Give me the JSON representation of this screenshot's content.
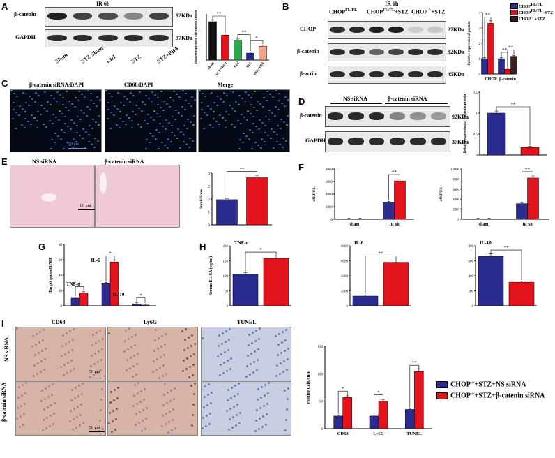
{
  "panels": {
    "A": {
      "letter": "A",
      "title": "IR 6h",
      "row1_label": "β-catenin",
      "row2_label": "GAPDH",
      "row1_kda": "92KDa",
      "row2_kda": "37KDa",
      "lanes": [
        "Sham",
        "STZ Sham",
        "Ctrl",
        "STZ",
        "STZ+PBA"
      ]
    },
    "B": {
      "letter": "B",
      "title": "IR 6h",
      "groups": [
        "CHOP",
        "CHOP",
        "CHOP"
      ],
      "group_sups": [
        "FL/FL",
        "FL/FL",
        "-/-"
      ],
      "group_suffix": [
        "",
        "+STZ",
        "+STZ"
      ],
      "rows": [
        "CHOP",
        "β-catenin",
        "β-actin"
      ],
      "kdas": [
        "27KDa",
        "92KDa",
        "45KDa"
      ],
      "legend": [
        {
          "base": "CHOP",
          "sup": "FL/FL",
          "suffix": ""
        },
        {
          "base": "CHOP",
          "sup": "FL/FL",
          "suffix": "+STZ"
        },
        {
          "base": "CHOP",
          "sup": "-/-",
          "suffix": "+STZ"
        }
      ]
    },
    "C": {
      "letter": "C",
      "labels": [
        "β-catenin siRNA/DAPI",
        "CD68/DAPI",
        "Merge"
      ],
      "scale": "50 μm"
    },
    "D": {
      "letter": "D",
      "groups": [
        "NS siRNA",
        "β-catenin siRNA"
      ],
      "rows": [
        "β-catenin",
        "GAPDH"
      ],
      "kdas": [
        "92KDa",
        "37KDa"
      ]
    },
    "E": {
      "letter": "E",
      "labels": [
        "NS siRNA",
        "β-catenin siRNA"
      ],
      "scale": "100 μm"
    },
    "F": {
      "letter": "F"
    },
    "G": {
      "letter": "G",
      "labels": [
        "TNF-α",
        "IL-6",
        "IL-10"
      ]
    },
    "H": {
      "letter": "H"
    },
    "I": {
      "letter": "I",
      "cols": [
        "CD68",
        "Ly6G",
        "TUNEL"
      ],
      "rows": [
        "NS siRNA",
        "β-catenin siRNA"
      ],
      "scale": "50 μm",
      "legend": [
        {
          "base": "CHOP",
          "sup": "-/-",
          "suffix": "+STZ+NS siRNA"
        },
        {
          "base": "CHOP",
          "sup": "-/-",
          "suffix": "+STZ+β-catenin siRNA"
        }
      ]
    }
  },
  "colors": {
    "blue": "#2a2d8f",
    "red": "#e3131b",
    "dark": "#3a1f1f",
    "green": "#2aa84a",
    "salmon": "#f4a48a",
    "black": "#111111"
  },
  "chart_data": [
    {
      "id": "A",
      "type": "bar",
      "categories": [
        "Sham",
        "STZ Sham",
        "Ctrl",
        "STZ",
        "STZ+PBA"
      ],
      "values": [
        1.0,
        0.65,
        0.52,
        0.18,
        0.36
      ],
      "colors": [
        "#111111",
        "#e3131b",
        "#2aa84a",
        "#2a2d8f",
        "#f4a48a"
      ],
      "ylabel": "Relative expression of β-catenin protein",
      "ylim": [
        0,
        1.2
      ],
      "yticks": [],
      "sig": [
        {
          "from": 0,
          "to": 1,
          "label": "**"
        },
        {
          "from": 2,
          "to": 3,
          "label": "**"
        },
        {
          "from": 3,
          "to": 4,
          "label": "*"
        }
      ]
    },
    {
      "id": "B",
      "type": "bar",
      "categories": [
        "CHOP",
        "β-catenin"
      ],
      "ylabel": "Relative expression of protein",
      "ylim": [
        0,
        4
      ],
      "yticks": [
        0,
        1,
        2,
        3,
        4
      ],
      "series": [
        {
          "values": [
            1.0,
            1.0
          ],
          "color": "#2a2d8f"
        },
        {
          "values": [
            3.3,
            0.3
          ],
          "color": "#e3131b"
        },
        {
          "values": [
            0.0,
            1.15
          ],
          "color": "#3a1f1f"
        }
      ],
      "sig": [
        {
          "cat": 0,
          "from": 0,
          "to": 1,
          "label": "**"
        },
        {
          "cat": 1,
          "from": 0,
          "to": 1,
          "label": "**"
        },
        {
          "cat": 1,
          "from": 1,
          "to": 2,
          "label": "**"
        }
      ]
    },
    {
      "id": "D",
      "type": "bar",
      "categories": [
        "NS siRNA",
        "β-catenin siRNA"
      ],
      "values": [
        1.0,
        0.18
      ],
      "colors": [
        "#2a2d8f",
        "#e3131b"
      ],
      "ylabel": "Relative expression of β-catenin protein",
      "ylim": [
        0,
        1.5
      ],
      "yticks": [
        0.0,
        0.5,
        1.0,
        1.5
      ],
      "sig": [
        {
          "from": 0,
          "to": 1,
          "label": "**"
        }
      ]
    },
    {
      "id": "E",
      "type": "bar",
      "categories": [
        "NS siRNA",
        "β-catenin siRNA"
      ],
      "values": [
        1.95,
        3.65
      ],
      "colors": [
        "#2a2d8f",
        "#e3131b"
      ],
      "ylabel": "Suzuki Score",
      "ylim": [
        0,
        4
      ],
      "yticks": [
        0,
        1,
        2,
        3,
        4
      ],
      "sig": [
        {
          "from": 0,
          "to": 1,
          "label": "**"
        }
      ]
    },
    {
      "id": "F1",
      "type": "bar",
      "categories": [
        "sham",
        "IR 6h"
      ],
      "ylabel": "sALT U/L",
      "ylim": [
        0,
        8000
      ],
      "yticks": [
        0,
        2000,
        4000,
        6000,
        8000
      ],
      "series": [
        {
          "values": [
            20,
            2700
          ],
          "color": "#2a2d8f"
        },
        {
          "values": [
            20,
            6100
          ],
          "color": "#e3131b"
        }
      ],
      "sig": [
        {
          "cat": 1,
          "from": 0,
          "to": 1,
          "label": "**"
        }
      ]
    },
    {
      "id": "F2",
      "type": "bar",
      "categories": [
        "sham",
        "IR 6h"
      ],
      "ylabel": "sAST U/L",
      "ylim": [
        0,
        10000
      ],
      "yticks": [
        0,
        2000,
        4000,
        6000,
        8000,
        10000
      ],
      "series": [
        {
          "values": [
            20,
            3100
          ],
          "color": "#2a2d8f"
        },
        {
          "values": [
            20,
            8200
          ],
          "color": "#e3131b"
        }
      ],
      "sig": [
        {
          "cat": 1,
          "from": 0,
          "to": 1,
          "label": "**"
        }
      ]
    },
    {
      "id": "G",
      "type": "bar",
      "categories": [
        "TNF-α",
        "IL-6",
        "IL-10"
      ],
      "ylabel": "Target genes/HPRT",
      "ylim": [
        0,
        80
      ],
      "yticks": [
        0,
        20,
        40,
        60,
        80
      ],
      "series": [
        {
          "values": [
            10,
            29,
            2.5
          ],
          "color": "#2a2d8f"
        },
        {
          "values": [
            17,
            57,
            1.0
          ],
          "color": "#e3131b"
        }
      ],
      "sig": [
        {
          "cat": 0,
          "from": 0,
          "to": 1,
          "label": "*"
        },
        {
          "cat": 1,
          "from": 0,
          "to": 1,
          "label": "*"
        },
        {
          "cat": 2,
          "from": 0,
          "to": 1,
          "label": "*"
        }
      ]
    },
    {
      "id": "H1",
      "type": "bar",
      "title": "TNF-α",
      "categories": [
        "NS siRNA",
        "β-catenin siRNA"
      ],
      "values": [
        105,
        158
      ],
      "colors": [
        "#2a2d8f",
        "#e3131b"
      ],
      "ylabel": "Serum ELISA (pg/ml)",
      "ylim": [
        0,
        200
      ],
      "yticks": [
        0,
        50,
        100,
        150,
        200
      ],
      "sig": [
        {
          "from": 0,
          "to": 1,
          "label": "*"
        }
      ]
    },
    {
      "id": "H2",
      "type": "bar",
      "title": "IL-6",
      "categories": [
        "NS siRNA",
        "β-catenin siRNA"
      ],
      "values": [
        1300,
        5800
      ],
      "colors": [
        "#2a2d8f",
        "#e3131b"
      ],
      "ylabel": "",
      "ylim": [
        0,
        8000
      ],
      "yticks": [
        0,
        2000,
        4000,
        6000,
        8000
      ],
      "sig": [
        {
          "from": 0,
          "to": 1,
          "label": "**"
        }
      ]
    },
    {
      "id": "H3",
      "type": "bar",
      "title": "IL-10",
      "categories": [
        "NS siRNA",
        "β-catenin siRNA"
      ],
      "values": [
        660,
        315
      ],
      "colors": [
        "#2a2d8f",
        "#e3131b"
      ],
      "ylabel": "",
      "ylim": [
        0,
        800
      ],
      "yticks": [
        0,
        200,
        400,
        600,
        800
      ],
      "sig": [
        {
          "from": 0,
          "to": 1,
          "label": "**"
        }
      ]
    },
    {
      "id": "I",
      "type": "bar",
      "categories": [
        "CD68",
        "Ly6G",
        "TUNEL"
      ],
      "ylabel": "Positive Cells/HPF",
      "ylim": [
        0,
        150
      ],
      "yticks": [
        0,
        50,
        100,
        150
      ],
      "series": [
        {
          "values": [
            23,
            23,
            35
          ],
          "color": "#2a2d8f"
        },
        {
          "values": [
            57,
            50,
            104
          ],
          "color": "#e3131b"
        }
      ],
      "sig": [
        {
          "cat": 0,
          "from": 0,
          "to": 1,
          "label": "*"
        },
        {
          "cat": 1,
          "from": 0,
          "to": 1,
          "label": "*"
        },
        {
          "cat": 2,
          "from": 0,
          "to": 1,
          "label": "**"
        }
      ]
    }
  ]
}
